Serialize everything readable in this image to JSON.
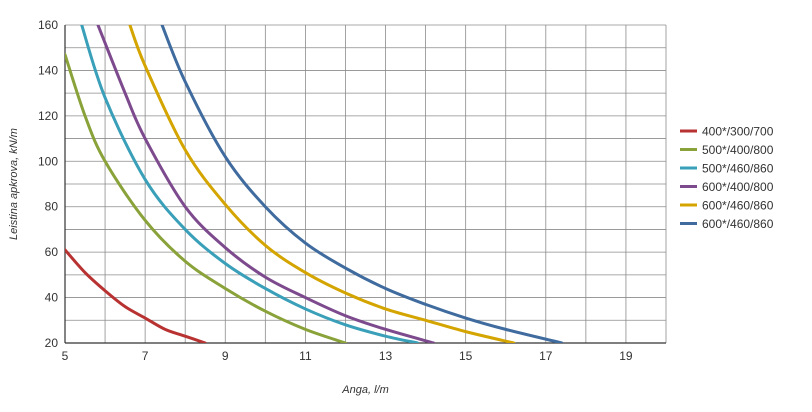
{
  "chart_data": {
    "type": "line",
    "title": "",
    "xlabel": "Anga, l/m",
    "ylabel": "Leistina apkrova, kN/m",
    "xlim": [
      5,
      20
    ],
    "ylim": [
      20,
      160
    ],
    "x_ticks": [
      5,
      7,
      9,
      11,
      13,
      15,
      17,
      19
    ],
    "x_tick_labels": [
      "5",
      "7",
      "9",
      "11",
      "13",
      "15",
      "17",
      "19"
    ],
    "x_grid_step": 1,
    "y_ticks": [
      20,
      40,
      60,
      80,
      100,
      120,
      140,
      160
    ],
    "y_tick_labels": [
      "20",
      "40",
      "60",
      "80",
      "100",
      "120",
      "140",
      "160"
    ],
    "y_grid_step": 10,
    "grid": true,
    "legend_position": "right",
    "series": [
      {
        "name": "400*/300/700",
        "color": "#b83232",
        "x": [
          5.0,
          5.5,
          6.0,
          6.5,
          7.0,
          7.5,
          8.0,
          8.5
        ],
        "y": [
          61,
          51,
          43,
          36,
          31,
          26,
          23,
          20
        ]
      },
      {
        "name": "500*/400/800",
        "color": "#8aa23a",
        "x": [
          5.0,
          5.5,
          6.0,
          7.0,
          8.0,
          9.0,
          10.0,
          11.0,
          12.0
        ],
        "y": [
          147,
          120,
          100,
          74,
          56,
          44,
          34,
          26,
          20
        ]
      },
      {
        "name": "500*/460/860",
        "color": "#3a9fb8",
        "x": [
          5.4,
          6.0,
          7.0,
          8.0,
          9.0,
          10.0,
          11.0,
          12.0,
          13.0,
          13.8
        ],
        "y": [
          161,
          128,
          92,
          70,
          55,
          44,
          35,
          28,
          23,
          20
        ]
      },
      {
        "name": "600*/400/800",
        "color": "#7d4a8e",
        "x": [
          5.8,
          6.5,
          7.0,
          8.0,
          9.0,
          10.0,
          11.0,
          12.0,
          13.0,
          14.2
        ],
        "y": [
          161,
          130,
          110,
          80,
          62,
          49,
          40,
          32,
          26,
          20
        ]
      },
      {
        "name": "600*/460/860",
        "color": "#d4a500",
        "x": [
          6.6,
          7.0,
          8.0,
          9.0,
          10.0,
          11.0,
          12.0,
          13.0,
          14.0,
          15.0,
          16.2
        ],
        "y": [
          161,
          142,
          105,
          81,
          63,
          51,
          42,
          35,
          30,
          25,
          20
        ]
      },
      {
        "name": "600*/460/860",
        "color": "#3f6b9e",
        "x": [
          7.4,
          8.0,
          9.0,
          10.0,
          11.0,
          12.0,
          13.0,
          14.0,
          15.0,
          16.0,
          17.4
        ],
        "y": [
          161,
          135,
          102,
          80,
          64,
          53,
          44,
          37,
          31,
          26,
          20
        ]
      }
    ]
  }
}
